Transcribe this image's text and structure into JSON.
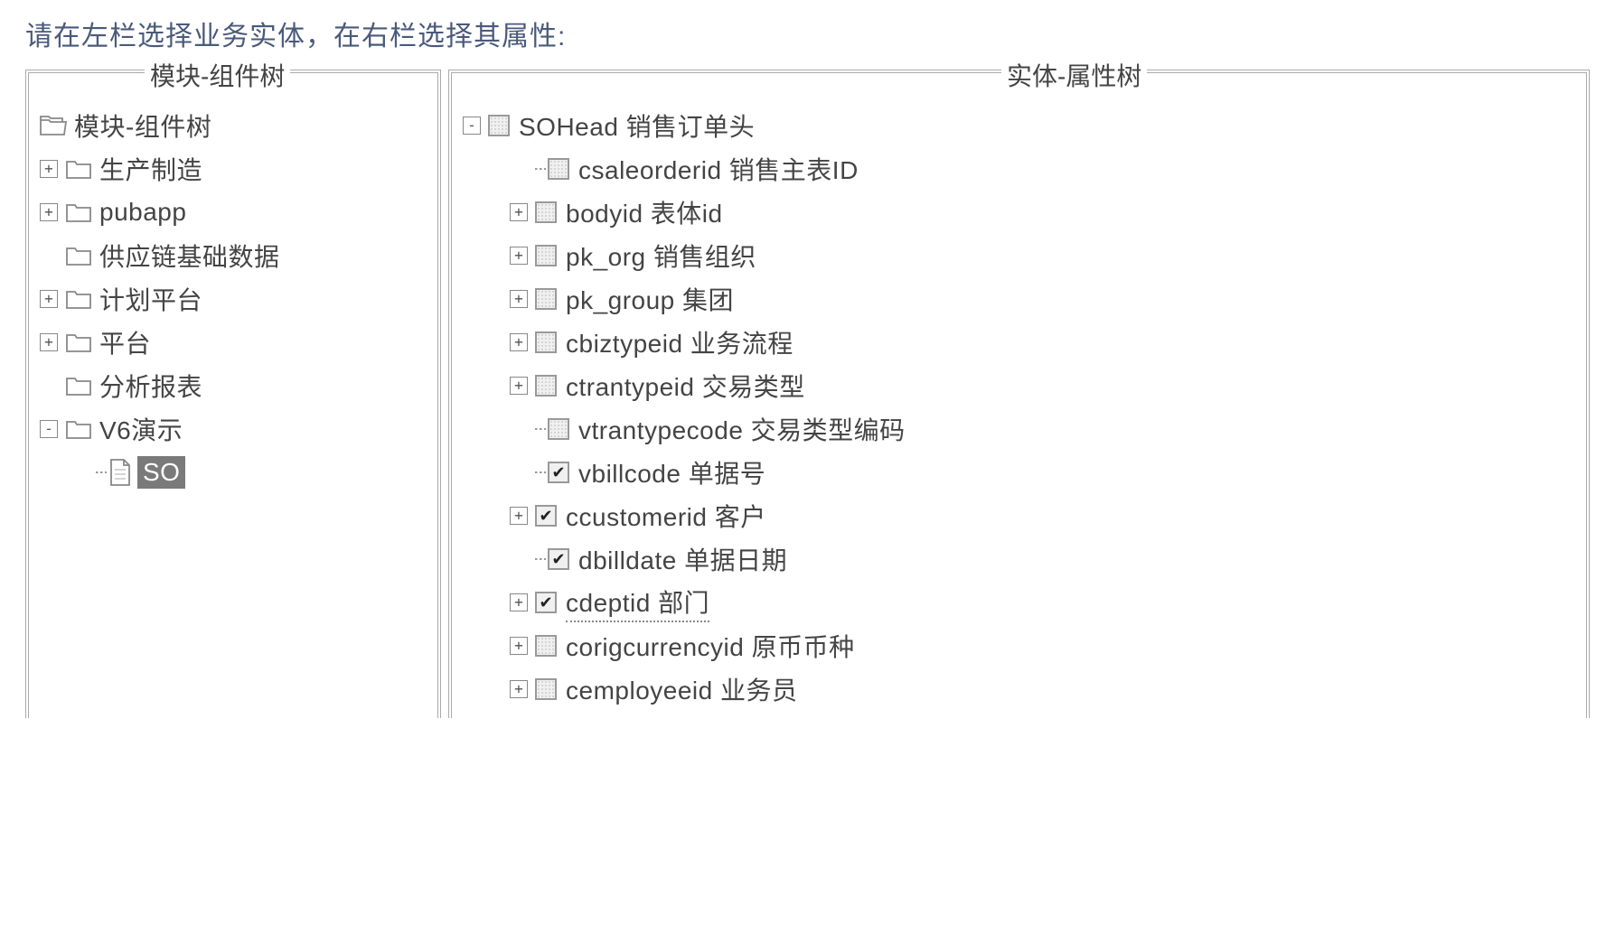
{
  "instruction": "请在左栏选择业务实体，在右栏选择其属性:",
  "leftPanel": {
    "title": "模块-组件树",
    "root": "模块-组件树",
    "nodes": [
      {
        "exp": "+",
        "label": "生产制造"
      },
      {
        "exp": "+",
        "label": "pubapp"
      },
      {
        "exp": "",
        "label": "供应链基础数据"
      },
      {
        "exp": "+",
        "label": "计划平台"
      },
      {
        "exp": "+",
        "label": "平台"
      },
      {
        "exp": "",
        "label": "分析报表"
      },
      {
        "exp": "-",
        "label": "V6演示"
      }
    ],
    "selectedLeaf": "SO"
  },
  "rightPanel": {
    "title": "实体-属性树",
    "root": {
      "exp": "-",
      "label": "SOHead 销售订单头"
    },
    "items": [
      {
        "exp": "",
        "checked": false,
        "label": "csaleorderid 销售主表ID"
      },
      {
        "exp": "+",
        "checked": false,
        "label": "bodyid 表体id"
      },
      {
        "exp": "+",
        "checked": false,
        "label": "pk_org 销售组织"
      },
      {
        "exp": "+",
        "checked": false,
        "label": "pk_group 集团"
      },
      {
        "exp": "+",
        "checked": false,
        "label": "cbiztypeid 业务流程"
      },
      {
        "exp": "+",
        "checked": false,
        "label": "ctrantypeid 交易类型"
      },
      {
        "exp": "",
        "checked": false,
        "label": "vtrantypecode 交易类型编码"
      },
      {
        "exp": "",
        "checked": true,
        "label": "vbillcode 单据号"
      },
      {
        "exp": "+",
        "checked": true,
        "label": "ccustomerid 客户"
      },
      {
        "exp": "",
        "checked": true,
        "label": "dbilldate 单据日期"
      },
      {
        "exp": "+",
        "checked": true,
        "label": "cdeptid 部门",
        "underline": true
      },
      {
        "exp": "+",
        "checked": false,
        "label": "corigcurrencyid 原币币种"
      },
      {
        "exp": "+",
        "checked": false,
        "label": "cemployeeid 业务员"
      }
    ]
  }
}
